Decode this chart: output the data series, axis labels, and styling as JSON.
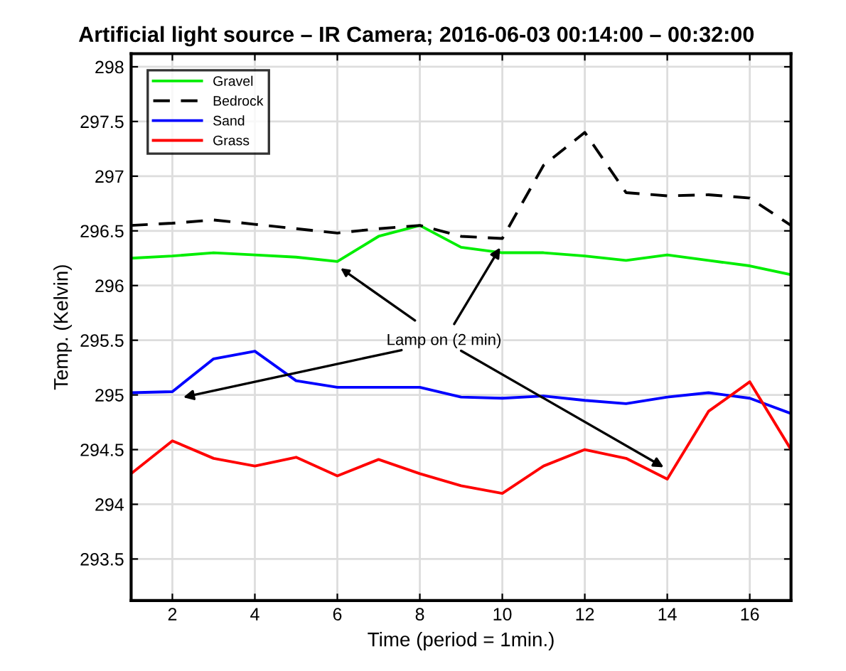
{
  "chart_data": {
    "type": "line",
    "title": "Artificial light source – IR Camera; 2016-06-03 00:14:00 – 00:32:00",
    "xlabel": "Time (period = 1min.)",
    "ylabel": "Temp. (Kelvin)",
    "x": [
      1,
      2,
      3,
      4,
      5,
      6,
      7,
      8,
      9,
      10,
      11,
      12,
      13,
      14,
      15,
      16,
      17
    ],
    "series": [
      {
        "name": "Gravel",
        "color": "#00ee00",
        "line_style": "solid",
        "values": [
          296.25,
          296.27,
          296.3,
          296.28,
          296.26,
          296.22,
          296.45,
          296.55,
          296.35,
          296.3,
          296.3,
          296.27,
          296.23,
          296.28,
          296.23,
          296.18,
          296.1
        ]
      },
      {
        "name": "Bedrock",
        "color": "#000000",
        "line_style": "dashed",
        "values": [
          296.55,
          296.57,
          296.6,
          296.56,
          296.52,
          296.48,
          296.52,
          296.55,
          296.45,
          296.43,
          297.1,
          297.4,
          296.85,
          296.82,
          296.83,
          296.8,
          296.55
        ]
      },
      {
        "name": "Sand",
        "color": "#0000ff",
        "line_style": "solid",
        "values": [
          295.02,
          295.03,
          295.33,
          295.4,
          295.13,
          295.07,
          295.07,
          295.07,
          294.98,
          294.97,
          294.99,
          294.95,
          294.92,
          294.98,
          295.02,
          294.97,
          294.83
        ]
      },
      {
        "name": "Grass",
        "color": "#ff0000",
        "line_style": "solid",
        "values": [
          294.28,
          294.58,
          294.42,
          294.35,
          294.43,
          294.26,
          294.41,
          294.28,
          294.17,
          294.1,
          294.35,
          294.5,
          294.42,
          294.23,
          294.85,
          295.12,
          294.5
        ]
      }
    ],
    "xlim": [
      1,
      17
    ],
    "xticks": [
      2,
      4,
      6,
      8,
      10,
      12,
      14,
      16
    ],
    "ylim": [
      293.12,
      298.12
    ],
    "yticks": [
      293.5,
      294,
      294.5,
      295,
      295.5,
      296,
      296.5,
      297,
      297.5,
      298
    ],
    "grid": true,
    "legend": "top left",
    "marker": "none",
    "annotations": [
      {
        "text": "Lamp on (2 min)",
        "x": 6,
        "y": 296.18
      }
    ]
  }
}
